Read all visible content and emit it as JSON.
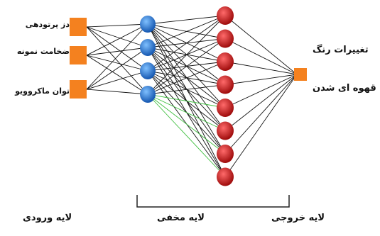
{
  "inputs": [
    {
      "label": "دز پرتودهی"
    },
    {
      "label": "ضخامت نمونه"
    },
    {
      "label": "توان ماکروویو"
    }
  ],
  "hidden_nodes": 4,
  "output_nodes": 8,
  "result": {
    "line1": "تغییرات رنگ",
    "line2": "قهوه ای شدن"
  },
  "layers": {
    "input": "لایه ورودی",
    "hidden": "لایه مخفی",
    "output": "لایه خروجی"
  },
  "colors": {
    "input": "#f4811f",
    "hidden": "#1f7ad8",
    "output": "#d71e1e",
    "final": "#f4811f",
    "edge": "#111111",
    "highlight": "#3fbf3f"
  }
}
